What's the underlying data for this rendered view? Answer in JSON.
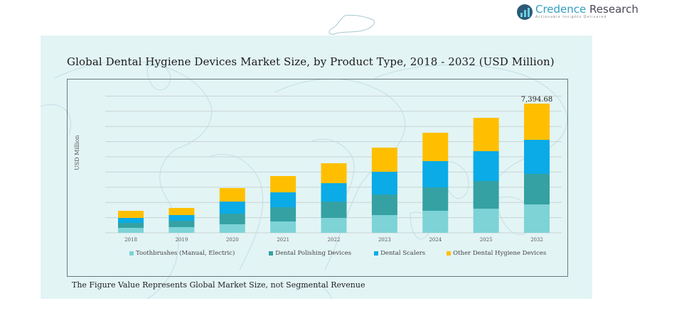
{
  "brand": {
    "name_part1": "Credence",
    "name_part2": " Research",
    "tagline": "Actionable Insights Delivered"
  },
  "footnote": "The Figure Value Represents Global Market Size, not Segmental Revenue",
  "colors": {
    "toothbrushes": "#7dd3d6",
    "polishing": "#35a1a3",
    "scalers": "#0aabe6",
    "other": "#ffbf00",
    "panel_bg": "#e3f4f5",
    "gridline": "#c9d3d4"
  },
  "chart_data": {
    "type": "bar",
    "stacked": true,
    "title": "Global Dental Hygiene Devices Market Size, by Product Type, 2018 - 2032 (USD Million)",
    "xlabel": "",
    "ylabel": "USD Million",
    "ylim": [
      0,
      8000
    ],
    "grid": true,
    "legend_position": "bottom",
    "categories": [
      "2018",
      "2019",
      "2020",
      "2021",
      "2022",
      "2023",
      "2024",
      "2025",
      "2032"
    ],
    "series": [
      {
        "name": "Toothbrushes (Manual, Electric)",
        "key": "toothbrushes",
        "values": [
          284,
          325,
          488,
          650,
          853,
          1016,
          1260,
          1381,
          1625
        ]
      },
      {
        "name": "Dental Polishing Devices",
        "key": "polishing",
        "values": [
          284,
          366,
          609,
          813,
          934,
          1178,
          1341,
          1585,
          1747
        ]
      },
      {
        "name": "Dental Scalers",
        "key": "scalers",
        "values": [
          284,
          325,
          691,
          853,
          1056,
          1300,
          1503,
          1706,
          1950
        ]
      },
      {
        "name": "Other Dental Hygiene Devices",
        "key": "other",
        "values": [
          406,
          406,
          772,
          934,
          1138,
          1381,
          1625,
          1910,
          2073
        ]
      }
    ],
    "annotations": [
      {
        "category": "2032",
        "text": "7,394.68"
      }
    ]
  }
}
